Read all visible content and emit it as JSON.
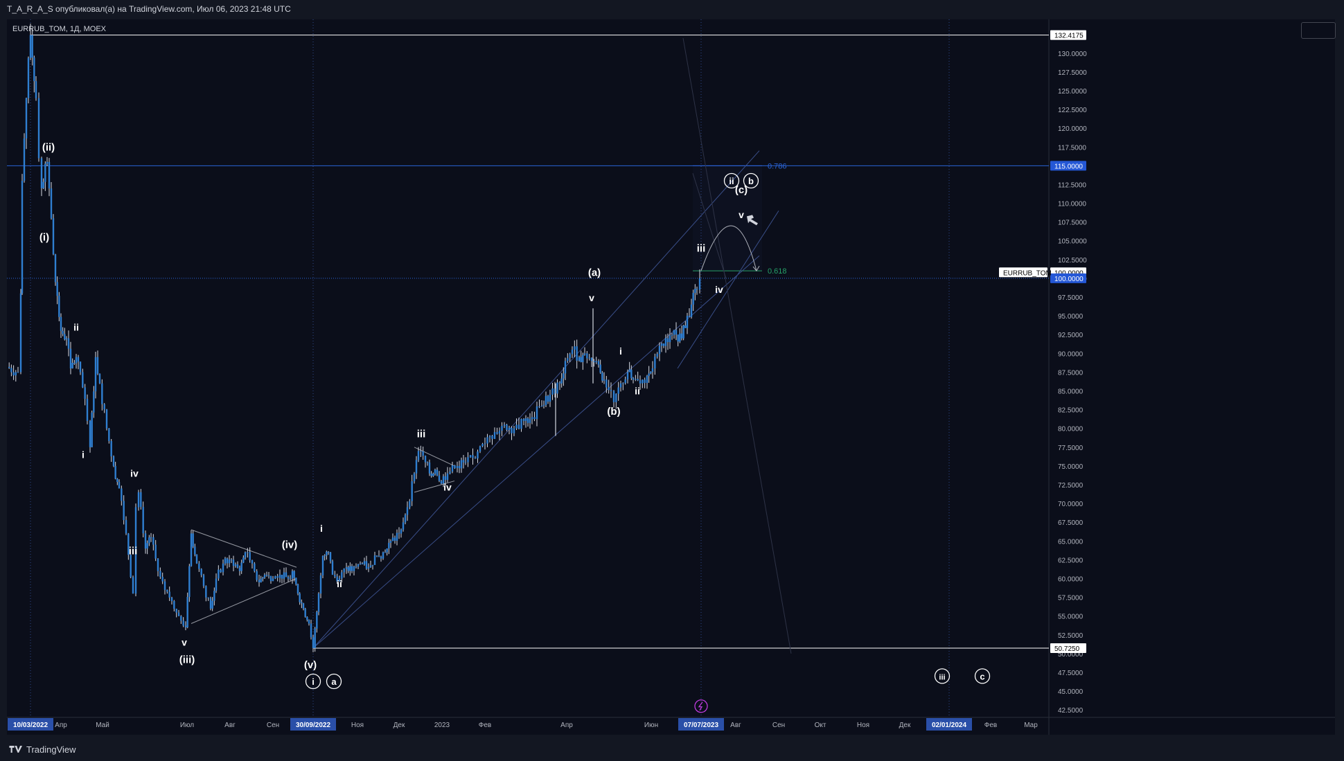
{
  "header": {
    "published": "T_A_R_A_S опубликовал(а) на TradingView.com, Июл 06, 2023 21:48 UTC"
  },
  "symbol_label": "EURRUB_TOM, 1Д, MOEX",
  "footer": {
    "logo_text": "TradingView"
  },
  "colors": {
    "background": "#131722",
    "panel": "#0b0e1a",
    "candle_body": "#2f7fd1",
    "candle_wick": "#d7dbe4",
    "fib_786": "#2b65d9",
    "fib_618": "#26a269",
    "axis_highlight": "#2a4fa8",
    "text": "#d1d4dc"
  },
  "chart_data": {
    "type": "candlestick",
    "symbol": "EURRUB_TOM",
    "timeframe": "1Д",
    "exchange": "MOEX",
    "ylim": [
      41.5,
      134.5
    ],
    "y_ticks": [
      "42.5000",
      "45.0000",
      "47.5000",
      "50.0000",
      "52.5000",
      "55.0000",
      "57.5000",
      "60.0000",
      "62.5000",
      "65.0000",
      "67.5000",
      "70.0000",
      "72.5000",
      "75.0000",
      "77.5000",
      "80.0000",
      "82.5000",
      "85.0000",
      "87.5000",
      "90.0000",
      "92.5000",
      "95.0000",
      "97.5000",
      "100.0000",
      "102.5000",
      "105.0000",
      "107.5000",
      "110.0000",
      "112.5000",
      "115.0000",
      "117.5000",
      "120.0000",
      "122.5000",
      "125.0000",
      "127.5000",
      "130.0000"
    ],
    "x_ticks": [
      {
        "date": "2022-03-10",
        "label": "10/03/2022",
        "highlight": true
      },
      {
        "date": "2022-04-01",
        "label": "Апр"
      },
      {
        "date": "2022-05-01",
        "label": "Май"
      },
      {
        "date": "2022-07-01",
        "label": "Июл"
      },
      {
        "date": "2022-08-01",
        "label": "Авг"
      },
      {
        "date": "2022-09-01",
        "label": "Сен"
      },
      {
        "date": "2022-09-30",
        "label": "30/09/2022",
        "highlight": true
      },
      {
        "date": "2022-11-01",
        "label": "Ноя"
      },
      {
        "date": "2022-12-01",
        "label": "Дек"
      },
      {
        "date": "2023-01-01",
        "label": "2023"
      },
      {
        "date": "2023-02-01",
        "label": "Фев"
      },
      {
        "date": "2023-04-01",
        "label": "Апр"
      },
      {
        "date": "2023-06-01",
        "label": "Июн"
      },
      {
        "date": "2023-07-07",
        "label": "07/07/2023",
        "highlight": true
      },
      {
        "date": "2023-08-01",
        "label": "Авг"
      },
      {
        "date": "2023-09-01",
        "label": "Сен"
      },
      {
        "date": "2023-10-01",
        "label": "Окт"
      },
      {
        "date": "2023-11-01",
        "label": "Ноя"
      },
      {
        "date": "2023-12-01",
        "label": "Дек"
      },
      {
        "date": "2024-01-02",
        "label": "02/01/2024",
        "highlight": true
      },
      {
        "date": "2024-02-01",
        "label": "Фев"
      },
      {
        "date": "2024-03-01",
        "label": "Мар"
      }
    ],
    "price_path": [
      [
        "2022-02-21",
        88.2
      ],
      [
        "2022-03-01",
        87.5
      ],
      [
        "2022-03-03",
        98.0
      ],
      [
        "2022-03-04",
        113.0
      ],
      [
        "2022-03-07",
        124.0
      ],
      [
        "2022-03-10",
        132.4175
      ],
      [
        "2022-03-14",
        124.0
      ],
      [
        "2022-03-16",
        116.0
      ],
      [
        "2022-03-18",
        112.0
      ],
      [
        "2022-03-22",
        115.5
      ],
      [
        "2022-03-25",
        108.0
      ],
      [
        "2022-03-28",
        99.5
      ],
      [
        "2022-04-01",
        93.0
      ],
      [
        "2022-04-05",
        92.0
      ],
      [
        "2022-04-08",
        88.0
      ],
      [
        "2022-04-12",
        89.5
      ],
      [
        "2022-04-15",
        87.5
      ],
      [
        "2022-04-20",
        81.0
      ],
      [
        "2022-04-22",
        77.5
      ],
      [
        "2022-04-26",
        89.5
      ],
      [
        "2022-04-29",
        86.0
      ],
      [
        "2022-05-04",
        80.0
      ],
      [
        "2022-05-09",
        75.0
      ],
      [
        "2022-05-13",
        72.0
      ],
      [
        "2022-05-18",
        66.0
      ],
      [
        "2022-05-23",
        58.0
      ],
      [
        "2022-05-25",
        69.5
      ],
      [
        "2022-05-27",
        71.5
      ],
      [
        "2022-06-01",
        64.0
      ],
      [
        "2022-06-05",
        65.5
      ],
      [
        "2022-06-10",
        61.0
      ],
      [
        "2022-06-15",
        58.5
      ],
      [
        "2022-06-20",
        57.0
      ],
      [
        "2022-06-25",
        55.0
      ],
      [
        "2022-06-30",
        53.5
      ],
      [
        "2022-07-04",
        66.0
      ],
      [
        "2022-07-08",
        62.0
      ],
      [
        "2022-07-13",
        59.0
      ],
      [
        "2022-07-18",
        56.0
      ],
      [
        "2022-07-22",
        60.0
      ],
      [
        "2022-07-27",
        62.0
      ],
      [
        "2022-08-02",
        62.5
      ],
      [
        "2022-08-08",
        61.0
      ],
      [
        "2022-08-12",
        63.5
      ],
      [
        "2022-08-17",
        62.0
      ],
      [
        "2022-08-22",
        59.5
      ],
      [
        "2022-08-26",
        60.5
      ],
      [
        "2022-09-01",
        60.0
      ],
      [
        "2022-09-06",
        60.5
      ],
      [
        "2022-09-12",
        60.0
      ],
      [
        "2022-09-15",
        61.0
      ],
      [
        "2022-09-19",
        58.0
      ],
      [
        "2022-09-23",
        56.0
      ],
      [
        "2022-09-27",
        54.0
      ],
      [
        "2022-09-30",
        50.725
      ],
      [
        "2022-10-04",
        58.0
      ],
      [
        "2022-10-07",
        63.0
      ],
      [
        "2022-10-11",
        63.5
      ],
      [
        "2022-10-14",
        60.5
      ],
      [
        "2022-10-19",
        60.0
      ],
      [
        "2022-10-24",
        61.5
      ],
      [
        "2022-10-28",
        61.0
      ],
      [
        "2022-11-03",
        62.0
      ],
      [
        "2022-11-09",
        61.5
      ],
      [
        "2022-11-15",
        63.0
      ],
      [
        "2022-11-21",
        63.5
      ],
      [
        "2022-11-25",
        65.0
      ],
      [
        "2022-12-01",
        66.0
      ],
      [
        "2022-12-07",
        69.5
      ],
      [
        "2022-12-12",
        74.0
      ],
      [
        "2022-12-15",
        77.0
      ],
      [
        "2022-12-20",
        75.5
      ],
      [
        "2022-12-23",
        74.0
      ],
      [
        "2022-12-27",
        74.5
      ],
      [
        "2022-12-30",
        73.0
      ],
      [
        "2023-01-05",
        74.0
      ],
      [
        "2023-01-12",
        75.0
      ],
      [
        "2023-01-18",
        75.5
      ],
      [
        "2023-01-25",
        76.0
      ],
      [
        "2023-02-01",
        78.0
      ],
      [
        "2023-02-08",
        79.5
      ],
      [
        "2023-02-15",
        80.5
      ],
      [
        "2023-02-22",
        80.0
      ],
      [
        "2023-03-01",
        81.0
      ],
      [
        "2023-03-07",
        81.5
      ],
      [
        "2023-03-14",
        83.0
      ],
      [
        "2023-03-20",
        84.5
      ],
      [
        "2023-03-27",
        86.0
      ],
      [
        "2023-03-31",
        89.0
      ],
      [
        "2023-04-05",
        90.5
      ],
      [
        "2023-04-10",
        89.5
      ],
      [
        "2023-04-14",
        90.0
      ],
      [
        "2023-04-19",
        89.0
      ],
      [
        "2023-04-24",
        88.5
      ],
      [
        "2023-04-28",
        86.5
      ],
      [
        "2023-05-03",
        85.0
      ],
      [
        "2023-05-05",
        83.5
      ],
      [
        "2023-05-10",
        86.0
      ],
      [
        "2023-05-15",
        87.5
      ],
      [
        "2023-05-19",
        86.5
      ],
      [
        "2023-05-24",
        86.0
      ],
      [
        "2023-05-29",
        87.0
      ],
      [
        "2023-06-02",
        88.0
      ],
      [
        "2023-06-07",
        91.0
      ],
      [
        "2023-06-13",
        91.5
      ],
      [
        "2023-06-19",
        92.5
      ],
      [
        "2023-06-23",
        92.0
      ],
      [
        "2023-06-27",
        95.0
      ],
      [
        "2023-06-30",
        96.5
      ],
      [
        "2023-07-04",
        98.5
      ],
      [
        "2023-07-06",
        100.0
      ]
    ],
    "spikes": [
      {
        "date": "2023-03-24",
        "low": 79.0
      },
      {
        "date": "2023-04-20",
        "high": 96.0
      }
    ],
    "hlines": [
      {
        "price": 132.4175,
        "from": "2022-03-10",
        "color": "#ffffff"
      },
      {
        "price": 50.725,
        "from": "2022-09-30",
        "color": "#ffffff"
      },
      {
        "price": 115.0,
        "from": "2022-02-21",
        "color": "#2b65d9"
      },
      {
        "price": 100.0,
        "from": "2022-02-21",
        "color": "#2b65d9",
        "dotted": true
      }
    ],
    "price_tags": [
      {
        "price": 132.4175,
        "label": "132.4175",
        "bg": "#ffffff",
        "fg": "#000000"
      },
      {
        "price": 115.0,
        "label": "115.0000",
        "bg": "#2457d6",
        "fg": "#ffffff"
      },
      {
        "price": 100.8,
        "label": "100.0000",
        "bg": "#ffffff",
        "fg": "#000000"
      },
      {
        "price": 100.0,
        "label": "100.0000",
        "bg": "#2457d6",
        "fg": "#ffffff"
      },
      {
        "price": 50.725,
        "label": "50.7250",
        "bg": "#ffffff",
        "fg": "#000000"
      }
    ],
    "symbol_tag": {
      "price": 100.8,
      "label": "EURRUB_TOM"
    },
    "fib_levels": [
      {
        "label": "0.786",
        "price": 115.0,
        "from": "2023-07-01",
        "to": "2023-08-20",
        "color": "#2b65d9"
      },
      {
        "label": "0.618",
        "price": 101.0,
        "from": "2023-07-01",
        "to": "2023-08-20",
        "color": "#26a269"
      }
    ],
    "wave_labels": [
      {
        "text": "(ii)",
        "date": "2022-03-23",
        "price": 117.5
      },
      {
        "text": "(i)",
        "date": "2022-03-20",
        "price": 105.5
      },
      {
        "text": "ii",
        "date": "2022-04-12",
        "price": 93.5
      },
      {
        "text": "i",
        "date": "2022-04-17",
        "price": 76.5
      },
      {
        "text": "iv",
        "date": "2022-05-24",
        "price": 74.0
      },
      {
        "text": "iii",
        "date": "2022-05-23",
        "price": 63.7
      },
      {
        "text": "v",
        "date": "2022-06-29",
        "price": 51.5
      },
      {
        "text": "(iii)",
        "date": "2022-07-01",
        "price": 49.2
      },
      {
        "text": "(iv)",
        "date": "2022-09-13",
        "price": 64.5
      },
      {
        "text": "(v)",
        "date": "2022-09-28",
        "price": 48.5
      },
      {
        "text": "i",
        "date": "2022-10-06",
        "price": 66.7
      },
      {
        "text": "ii",
        "date": "2022-10-19",
        "price": 59.3
      },
      {
        "text": "iii",
        "date": "2022-12-17",
        "price": 79.3
      },
      {
        "text": "iv",
        "date": "2023-01-05",
        "price": 72.2
      },
      {
        "text": "v",
        "date": "2023-04-19",
        "price": 97.4
      },
      {
        "text": "(a)",
        "date": "2023-04-21",
        "price": 100.8
      },
      {
        "text": "i",
        "date": "2023-05-10",
        "price": 90.3
      },
      {
        "text": "(b)",
        "date": "2023-05-05",
        "price": 82.3
      },
      {
        "text": "ii",
        "date": "2023-05-22",
        "price": 85.0
      },
      {
        "text": "iii",
        "date": "2023-07-07",
        "price": 104.0
      },
      {
        "text": "iv",
        "date": "2023-07-20",
        "price": 98.5
      },
      {
        "text": "v",
        "date": "2023-08-05",
        "price": 108.5
      },
      {
        "text": "(c)",
        "date": "2023-08-05",
        "price": 111.8
      }
    ],
    "circled_labels": [
      {
        "text": "i",
        "date": "2022-09-30",
        "price": 46.3
      },
      {
        "text": "a",
        "date": "2022-10-15",
        "price": 46.3
      },
      {
        "text": "ii",
        "date": "2023-07-29",
        "price": 113.0
      },
      {
        "text": "b",
        "date": "2023-08-12",
        "price": 113.0
      },
      {
        "text": "iii",
        "date": "2023-12-28",
        "price": 47.0
      },
      {
        "text": "c",
        "date": "2024-01-26",
        "price": 47.0
      }
    ],
    "trendlines": [
      {
        "from": [
          "2022-09-30",
          50.725
        ],
        "to": [
          "2023-08-18",
          117.0
        ],
        "color": "#3a4f8a"
      },
      {
        "from": [
          "2022-09-30",
          50.725
        ],
        "to": [
          "2023-08-18",
          103.0
        ],
        "color": "#3a4f8a"
      },
      {
        "from": [
          "2023-06-20",
          88.0
        ],
        "to": [
          "2023-09-01",
          109.0
        ],
        "color": "#3a4f8a"
      },
      {
        "from": [
          "2022-07-04",
          66.5
        ],
        "to": [
          "2022-09-18",
          61.5
        ],
        "color": "#9598a1"
      },
      {
        "from": [
          "2022-07-04",
          54.0
        ],
        "to": [
          "2022-09-18",
          60.0
        ],
        "color": "#9598a1"
      },
      {
        "from": [
          "2022-12-12",
          77.5
        ],
        "to": [
          "2023-01-10",
          75.0
        ],
        "color": "#9598a1"
      },
      {
        "from": [
          "2022-12-12",
          71.5
        ],
        "to": [
          "2023-01-10",
          73.0
        ],
        "color": "#9598a1"
      },
      {
        "from": [
          "2023-06-24",
          132.0
        ],
        "to": [
          "2023-09-10",
          50.0
        ],
        "color": "#2e3347"
      },
      {
        "from": [
          "2023-07-01",
          114.0
        ],
        "to": [
          "2023-07-25",
          100.0
        ],
        "color": "#2e3347"
      }
    ],
    "fib_box": {
      "from": "2023-07-01",
      "to": "2023-08-20",
      "top": 115.0,
      "bottom": 101.0
    },
    "vlines": [
      "2022-03-10",
      "2022-09-30",
      "2023-07-07",
      "2024-01-02"
    ],
    "projection_arc": {
      "from": [
        "2023-07-07",
        101.0
      ],
      "peak": [
        "2023-07-30",
        109.5
      ],
      "to": [
        "2023-08-16",
        101.0
      ]
    },
    "hand_marker": {
      "date": "2023-08-12",
      "price": 107.8
    },
    "event_marker": {
      "date": "2023-07-07",
      "price": 43.0
    }
  }
}
